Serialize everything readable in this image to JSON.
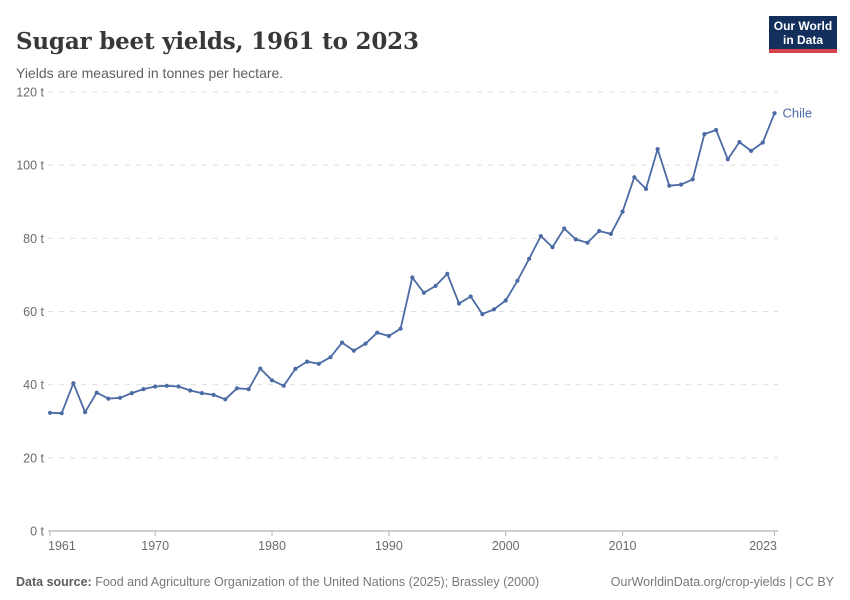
{
  "header": {
    "title": "Sugar beet yields, 1961 to 2023",
    "subtitle": "Yields are measured in tonnes per hectare.",
    "logo": {
      "line1": "Our World",
      "line2": "in Data",
      "bg_color": "#12305b",
      "accent_color": "#d8424a",
      "text_color": "#ffffff"
    }
  },
  "chart_data": {
    "type": "line",
    "title": "Sugar beet yields, 1961 to 2023",
    "subtitle": "Yields are measured in tonnes per hectare.",
    "xlabel": "",
    "ylabel": "tonnes per hectare",
    "xlim": [
      1961,
      2023
    ],
    "ylim": [
      0,
      120
    ],
    "yticks": [
      0,
      20,
      40,
      60,
      80,
      100,
      120
    ],
    "ytick_suffix": " t",
    "xticks": [
      1961,
      1970,
      1980,
      1990,
      2000,
      2010,
      2023
    ],
    "grid": "horizontal-dashed",
    "legend_position": "end-of-line-label",
    "x": [
      1961,
      1962,
      1963,
      1964,
      1965,
      1966,
      1967,
      1968,
      1969,
      1970,
      1971,
      1972,
      1973,
      1974,
      1975,
      1976,
      1977,
      1978,
      1979,
      1980,
      1981,
      1982,
      1983,
      1984,
      1985,
      1986,
      1987,
      1988,
      1989,
      1990,
      1991,
      1992,
      1993,
      1994,
      1995,
      1996,
      1997,
      1998,
      1999,
      2000,
      2001,
      2002,
      2003,
      2004,
      2005,
      2006,
      2007,
      2008,
      2009,
      2010,
      2011,
      2012,
      2013,
      2014,
      2015,
      2016,
      2017,
      2018,
      2019,
      2020,
      2021,
      2022,
      2023
    ],
    "series": [
      {
        "name": "Chile",
        "color": "#4c6ba5",
        "values": [
          32.3,
          32.2,
          40.4,
          32.5,
          37.8,
          36.2,
          36.4,
          37.7,
          38.8,
          39.5,
          39.7,
          39.5,
          38.4,
          37.7,
          37.2,
          36.0,
          39.0,
          38.8,
          44.4,
          41.2,
          39.7,
          44.3,
          46.3,
          45.7,
          47.5,
          51.5,
          49.3,
          51.2,
          54.2,
          53.3,
          55.3,
          69.3,
          65.1,
          67.0,
          70.3,
          62.2,
          64.1,
          59.3,
          60.6,
          63.0,
          68.4,
          74.4,
          80.6,
          77.6,
          82.7,
          79.7,
          78.8,
          82.0,
          81.2,
          87.3,
          96.7,
          93.5,
          104.4,
          94.4,
          94.7,
          96.1,
          108.5,
          109.6,
          101.6,
          106.3,
          103.9,
          106.2,
          114.2
        ]
      }
    ],
    "colors": {
      "grid": "#dedede",
      "axis_line": "#a0a0a0",
      "tick_mark": "#b3b3b3",
      "tick_label": "#6b6b6b"
    }
  },
  "footer": {
    "datasource_label": "Data source:",
    "datasource_text": " Food and Agriculture Organization of the United Nations (2025); Brassley (2000)",
    "right_text": "OurWorldinData.org/crop-yields | CC BY"
  }
}
